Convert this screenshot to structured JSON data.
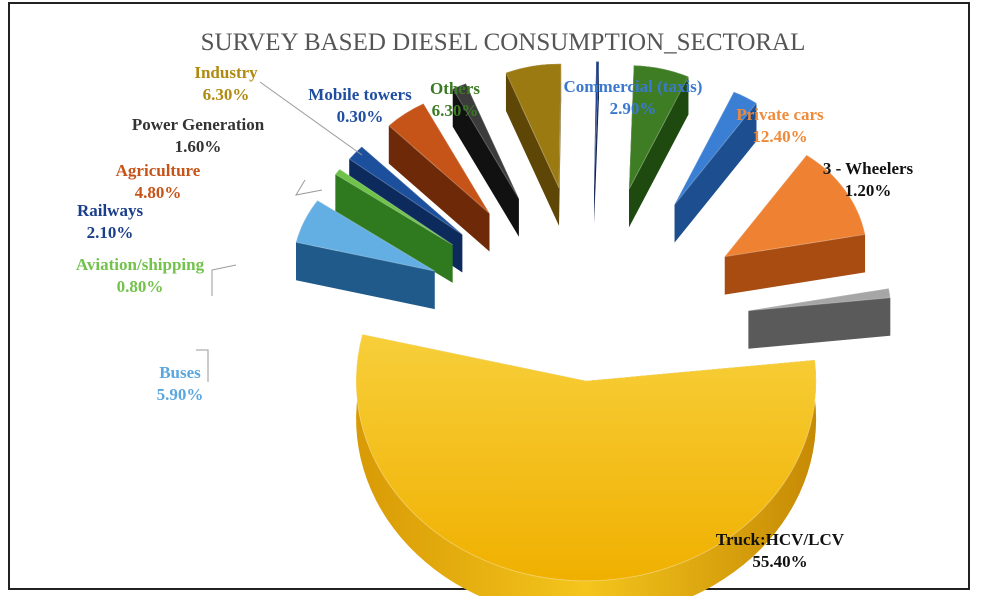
{
  "chart_data": {
    "type": "pie",
    "title": "SURVEY BASED  DIESEL CONSUMPTION_SECTORAL",
    "slices": [
      {
        "name": "Truck:HCV/LCV",
        "value": 55.4,
        "label": "55.40%",
        "color": "#f2b90f",
        "dark": "#b88608",
        "label_color": "#111111"
      },
      {
        "name": "Buses",
        "value": 5.9,
        "label": "5.90%",
        "color": "#63aee3",
        "dark": "#1f5a8a",
        "label_color": "#5aa6de"
      },
      {
        "name": "Aviation/shipping",
        "value": 0.8,
        "label": "0.80%",
        "color": "#6fc24a",
        "dark": "#2f7a1e",
        "label_color": "#72c24b"
      },
      {
        "name": "Railways",
        "value": 2.1,
        "label": "2.10%",
        "color": "#1c4f9c",
        "dark": "#0c2a5c",
        "label_color": "#1c3f8a"
      },
      {
        "name": "Agriculture",
        "value": 4.8,
        "label": "4.80%",
        "color": "#c65418",
        "dark": "#6e2a08",
        "label_color": "#c65418"
      },
      {
        "name": "Power Generation",
        "value": 1.6,
        "label": "1.60%",
        "color": "#3c3c3c",
        "dark": "#111111",
        "label_color": "#333333"
      },
      {
        "name": "Industry",
        "value": 6.3,
        "label": "6.30%",
        "color": "#9c7a12",
        "dark": "#5e4606",
        "label_color": "#b08a10"
      },
      {
        "name": "Mobile towers",
        "value": 0.3,
        "label": "0.30%",
        "color": "#1a3e8c",
        "dark": "#0a1f4c",
        "label_color": "#1f4ea0"
      },
      {
        "name": "Others",
        "value": 6.3,
        "label": "6.30%",
        "color": "#3e7d24",
        "dark": "#1e4a10",
        "label_color": "#3a7a22"
      },
      {
        "name": "Commercial (taxis)",
        "value": 2.9,
        "label": "2.90%",
        "color": "#3b7fd4",
        "dark": "#1d4f90",
        "label_color": "#3b78cf"
      },
      {
        "name": "Private cars",
        "value": 12.4,
        "label": "12.40%",
        "color": "#ee8232",
        "dark": "#a84c12",
        "label_color": "#ef8a3a"
      },
      {
        "name": "3 - Wheelers",
        "value": 1.2,
        "label": "1.20%",
        "color": "#a6a6a6",
        "dark": "#5a5a5a",
        "label_color": "#111111"
      }
    ],
    "legend": "none",
    "style": "exploded 3D pie"
  }
}
